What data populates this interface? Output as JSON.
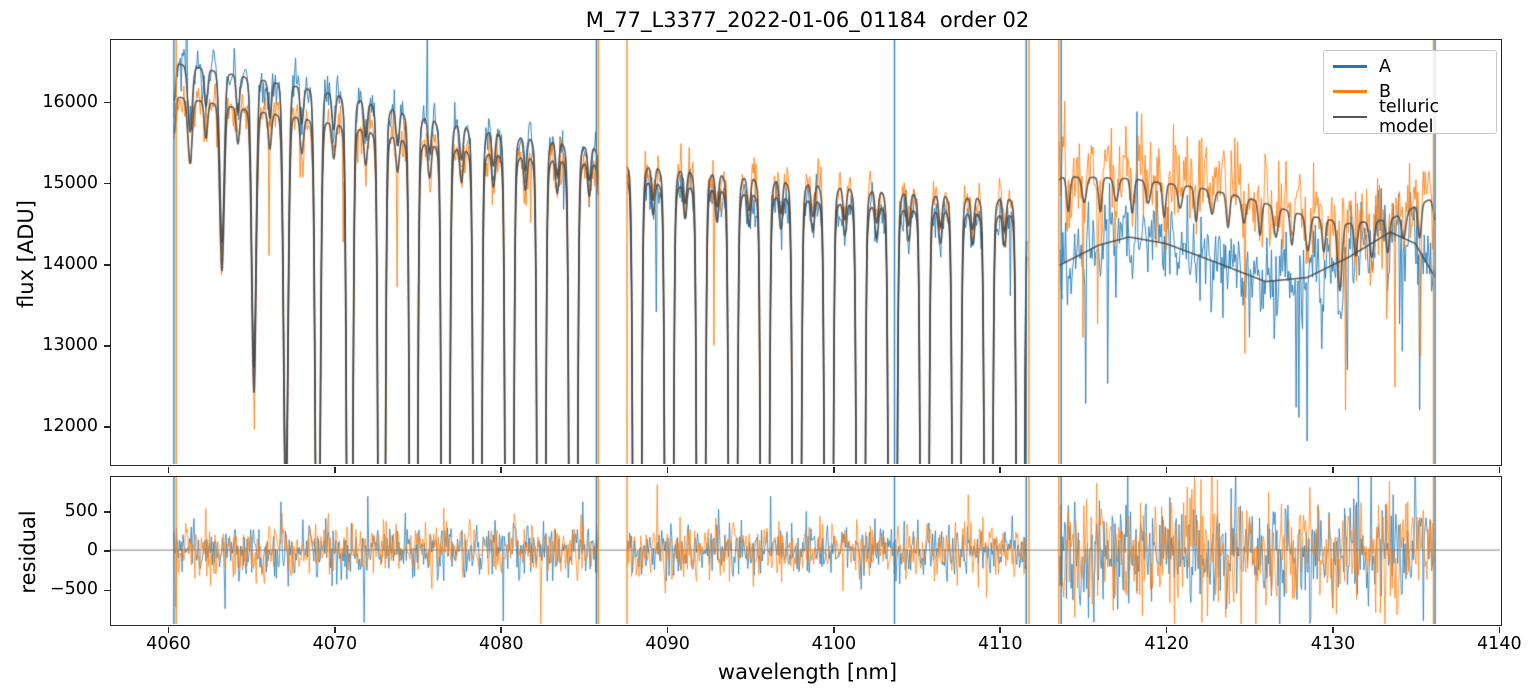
{
  "chart_data": {
    "type": "line",
    "title": "M_77_L3377_2022-01-06_01184  order 02",
    "xlabel": "wavelength [nm]",
    "xlim": [
      4056.6,
      4140.1
    ],
    "xticks": [
      4060,
      4070,
      4080,
      4090,
      4100,
      4110,
      4120,
      4130,
      4140
    ],
    "xtick_labels": [
      "4060",
      "4070",
      "4080",
      "4090",
      "4100",
      "4110",
      "4120",
      "4130",
      "4140"
    ],
    "panels": {
      "flux": {
        "ylabel": "flux [ADU]",
        "ylim": [
          11530,
          16760
        ],
        "yticks": [
          12000,
          13000,
          14000,
          15000,
          16000
        ],
        "ytick_labels": [
          "12000",
          "13000",
          "14000",
          "15000",
          "16000"
        ]
      },
      "residual": {
        "ylabel": "residual",
        "ylim": [
          -940,
          930
        ],
        "yticks": [
          -500,
          0,
          500
        ],
        "ytick_labels": [
          "−500",
          "0",
          "500"
        ],
        "zero_line": true
      }
    },
    "legend": {
      "position": "upper right",
      "entries": [
        {
          "key": "A",
          "label": "A",
          "color": "#1f77b4"
        },
        {
          "key": "B",
          "label": "B",
          "color": "#ff7f0e"
        },
        {
          "key": "model",
          "label": "telluric model",
          "color": "#555555"
        }
      ]
    },
    "colors": {
      "A": "#1f77b4",
      "B": "#ff7f0e",
      "model": "#454545"
    },
    "telluric": {
      "line_start": 4061.35,
      "line_spacing": 1.92,
      "sigma": 0.13,
      "lorentz_frac": 0.03,
      "lorentz_gamma": 0.25,
      "secondary": {
        "offset": 0.96,
        "depth": 0.028,
        "sigma": 0.1
      },
      "depth_profile": [
        [
          4059.0,
          0.03
        ],
        [
          4061.4,
          0.05
        ],
        [
          4063.3,
          0.13
        ],
        [
          4065.2,
          0.22
        ],
        [
          4067.2,
          0.32
        ],
        [
          4069.1,
          0.5
        ],
        [
          4071.0,
          0.8
        ],
        [
          4073.0,
          1.3
        ],
        [
          4075.0,
          1.9
        ],
        [
          4079.0,
          2.2
        ],
        [
          4104.0,
          2.2
        ],
        [
          4108.0,
          1.9
        ],
        [
          4111.6,
          1.5
        ],
        [
          4112.6,
          0.6
        ],
        [
          4113.6,
          0.022
        ],
        [
          4118.0,
          0.018
        ],
        [
          4124.0,
          0.02
        ],
        [
          4128.6,
          0.03
        ],
        [
          4129.7,
          0.075
        ],
        [
          4131.6,
          0.035
        ],
        [
          4134.0,
          0.022
        ],
        [
          4137.5,
          0.02
        ]
      ]
    },
    "noise_seed": 20220106,
    "segments": [
      {
        "xmin": 4060.38,
        "xmax": 4085.9,
        "A": {
          "continuum": [
            [
              4060.38,
              16480
            ],
            [
              4065,
              16310
            ],
            [
              4070,
              16150
            ],
            [
              4075,
              15970
            ],
            [
              4080,
              15780
            ],
            [
              4085.9,
              15600
            ]
          ],
          "sigma": 130,
          "offset": 0,
          "model_telluric": true
        },
        "B": {
          "continuum": [
            [
              4060.38,
              16070
            ],
            [
              4065,
              15910
            ],
            [
              4070,
              15780
            ],
            [
              4075,
              15640
            ],
            [
              4080,
              15520
            ],
            [
              4085.9,
              15400
            ]
          ],
          "sigma": 150,
          "offset": 0,
          "model_telluric": true
        },
        "residual_sigma": 165,
        "flux_tail": {
          "p": 0.01,
          "lo": 200,
          "hi": 1500,
          "down": 0.8
        },
        "residual_tail": {
          "p": 0.012,
          "lo": 250,
          "hi": 900,
          "down": 0.55
        }
      },
      {
        "xmin": 4087.62,
        "xmax": 4111.65,
        "A": {
          "continuum": [
            [
              4087.62,
              15210
            ],
            [
              4095,
              15030
            ],
            [
              4103,
              14860
            ],
            [
              4111.65,
              14700
            ]
          ],
          "sigma": 140,
          "offset": 0,
          "model_telluric": true
        },
        "B": {
          "continuum": [
            [
              4087.62,
              15400
            ],
            [
              4095,
              15230
            ],
            [
              4103,
              15060
            ],
            [
              4111.65,
              14900
            ]
          ],
          "sigma": 140,
          "offset": 0,
          "model_telluric": true
        },
        "residual_sigma": 175,
        "flux_tail": {
          "p": 0.012,
          "lo": 200,
          "hi": 2500,
          "down": 0.85
        },
        "residual_tail": {
          "p": 0.015,
          "lo": 250,
          "hi": 900,
          "down": 0.55
        }
      },
      {
        "xmin": 4113.6,
        "xmax": 4136.2,
        "A": {
          "continuum": [
            [
              4113.6,
              13980
            ],
            [
              4116,
              14230
            ],
            [
              4117.8,
              14330
            ],
            [
              4120,
              14250
            ],
            [
              4123,
              14020
            ],
            [
              4126,
              13780
            ],
            [
              4128.5,
              13830
            ],
            [
              4131,
              14080
            ],
            [
              4133.5,
              14390
            ],
            [
              4135,
              14250
            ],
            [
              4136.2,
              13830
            ]
          ],
          "sigma": 230,
          "offset": 100,
          "model_telluric": false
        },
        "B": {
          "continuum": [
            [
              4113.6,
              15090
            ],
            [
              4118,
              15050
            ],
            [
              4122,
              14940
            ],
            [
              4125,
              14810
            ],
            [
              4128,
              14620
            ],
            [
              4131,
              14500
            ],
            [
              4133.5,
              14550
            ],
            [
              4136.2,
              14830
            ]
          ],
          "sigma": 260,
          "offset": 130,
          "model_telluric": true
        },
        "residual_sigma": 340,
        "flux_tail": {
          "p": 0.04,
          "lo": 200,
          "hi": 2300,
          "down": 0.85
        },
        "residual_tail": {
          "p": 0.05,
          "lo": 200,
          "hi": 900,
          "down": 0.55
        }
      }
    ],
    "spikes": [
      {
        "x": 4060.38,
        "series": "A"
      },
      {
        "x": 4060.52,
        "series": "B"
      },
      {
        "x": 4085.78,
        "series": "A"
      },
      {
        "x": 4085.9,
        "series": "B"
      },
      {
        "x": 4087.62,
        "series": "B"
      },
      {
        "x": 4103.7,
        "series": "A"
      },
      {
        "x": 4111.62,
        "series": "A"
      },
      {
        "x": 4111.78,
        "series": "B"
      },
      {
        "x": 4113.58,
        "series": "B"
      },
      {
        "x": 4113.72,
        "series": "A"
      },
      {
        "x": 4136.1,
        "series": "B"
      },
      {
        "x": 4136.2,
        "series": "A"
      }
    ]
  }
}
